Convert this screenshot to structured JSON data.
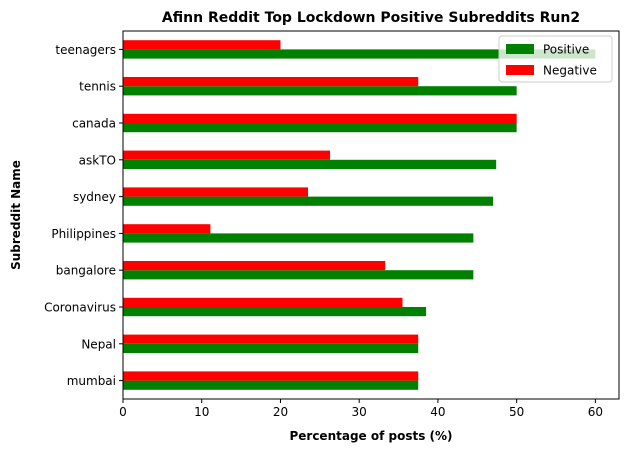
{
  "chart_data": {
    "type": "bar",
    "orientation": "horizontal",
    "title": "Afinn Reddit Top Lockdown Positive Subreddits Run2",
    "xlabel": "Percentage of posts (%)",
    "ylabel": "Subreddit Name",
    "xlim": [
      0,
      63
    ],
    "xticks": [
      "0",
      "10",
      "20",
      "30",
      "40",
      "50",
      "60"
    ],
    "grid": false,
    "legend_position": "top-right",
    "categories": [
      "mumbai",
      "Nepal",
      "Coronavirus",
      "bangalore",
      "Philippines",
      "sydney",
      "askTO",
      "canada",
      "tennis",
      "teenagers"
    ],
    "series": [
      {
        "name": "Positive",
        "color": "#008000",
        "values": [
          37.5,
          37.5,
          38.5,
          44.5,
          44.5,
          47.0,
          47.4,
          50.0,
          50.0,
          60.0
        ]
      },
      {
        "name": "Negative",
        "color": "#ff0000",
        "values": [
          37.5,
          37.5,
          35.5,
          33.3,
          11.1,
          23.5,
          26.3,
          50.0,
          37.5,
          20.0
        ]
      }
    ]
  }
}
